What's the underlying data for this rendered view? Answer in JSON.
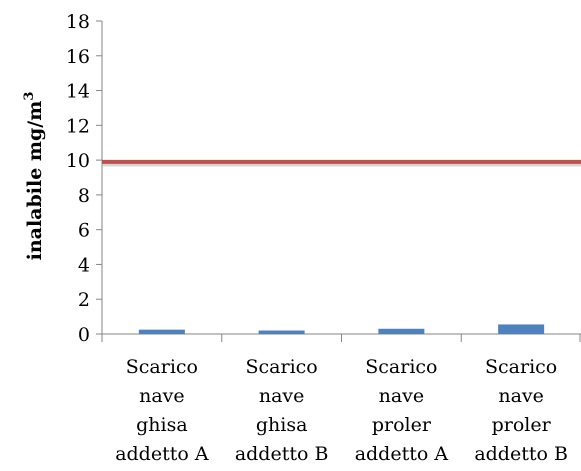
{
  "chart_data": {
    "type": "bar",
    "categories": [
      [
        "Scarico",
        "nave",
        "ghisa",
        "addetto A"
      ],
      [
        "Scarico",
        "nave",
        "ghisa",
        "addetto B"
      ],
      [
        "Scarico",
        "nave",
        "proler",
        "addetto A"
      ],
      [
        "Scarico",
        "nave",
        "proler",
        "addetto B"
      ]
    ],
    "values": [
      0.25,
      0.2,
      0.3,
      0.55
    ],
    "ylabel": "inalabile mg/m",
    "ylabel_superscript": "3",
    "ylim": [
      0,
      18
    ],
    "yticks": [
      0,
      2,
      4,
      6,
      8,
      10,
      12,
      14,
      16,
      18
    ],
    "reference_line": {
      "value": 9.9,
      "color": "#c0504d"
    },
    "bar_color": "#4f81bd",
    "grid": false,
    "legend": "none"
  }
}
